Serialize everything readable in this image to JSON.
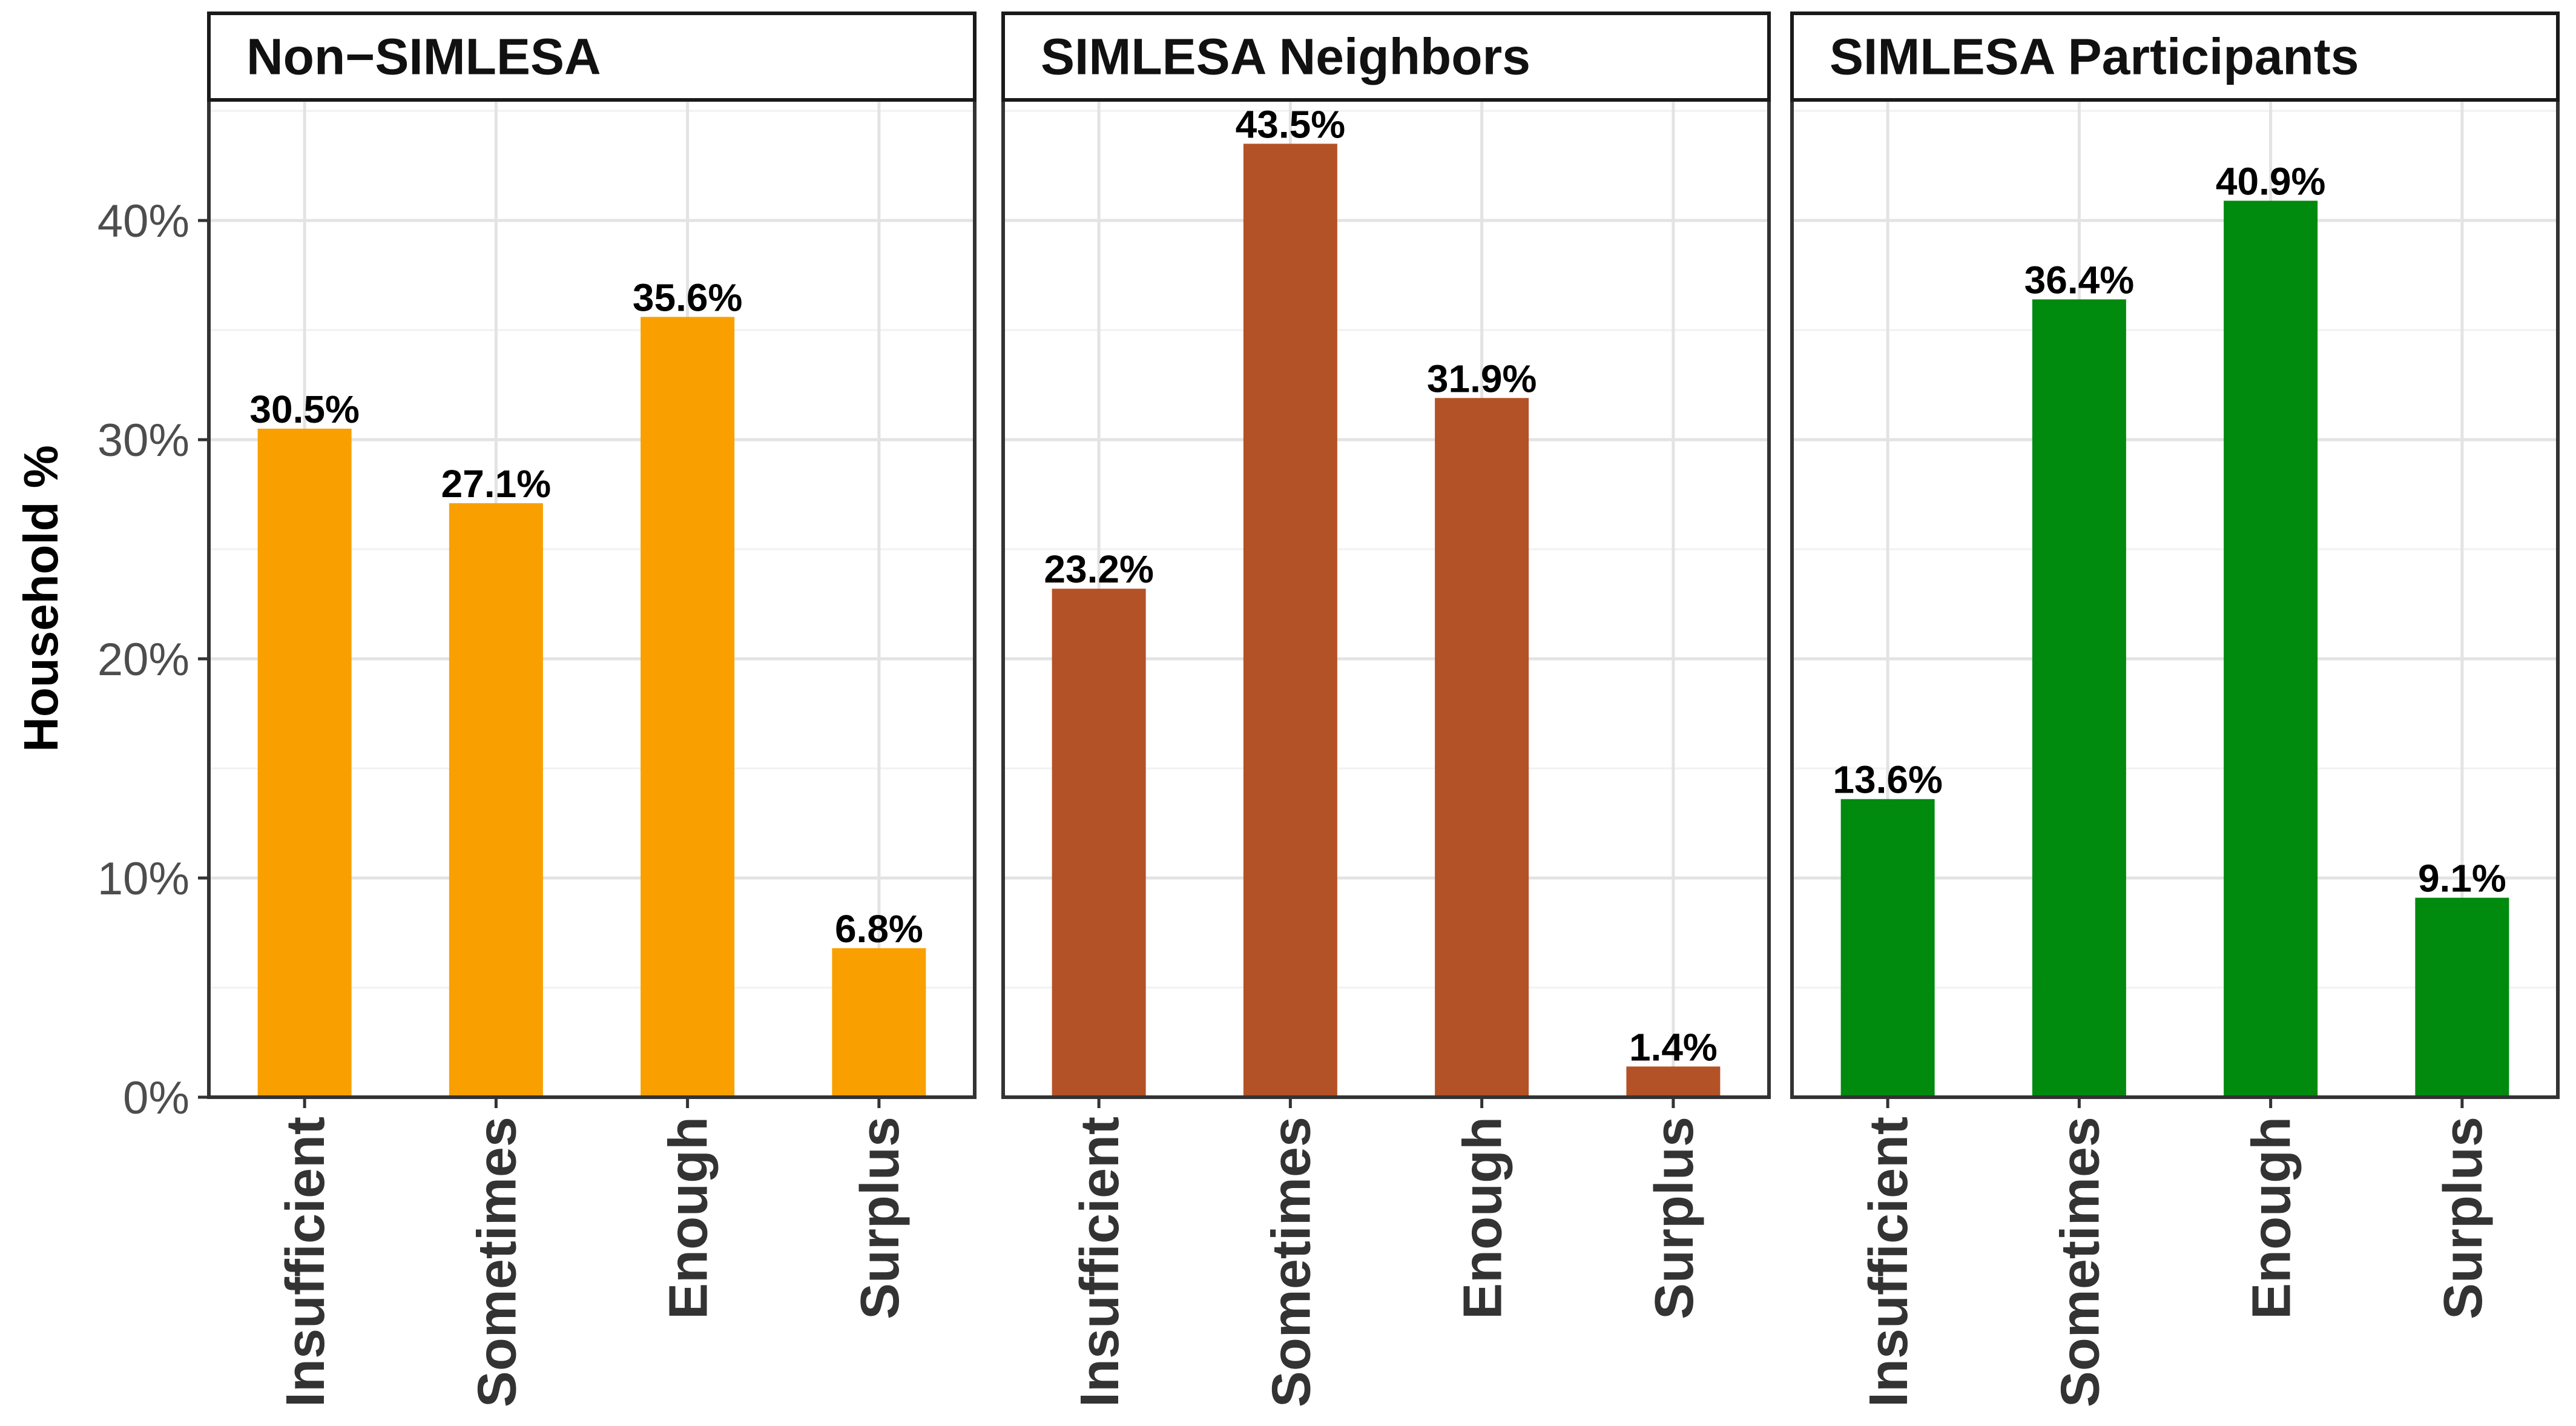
{
  "chart_data": {
    "type": "bar",
    "ylabel": "Household %",
    "xlabel": "",
    "ylim": [
      0,
      45.5
    ],
    "yticks": [
      0,
      10,
      20,
      30,
      40
    ],
    "ytick_labels": [
      "0%",
      "10%",
      "20%",
      "30%",
      "40%"
    ],
    "categories": [
      "Insufficient",
      "Sometimes",
      "Enough",
      "Surplus"
    ],
    "grid": true,
    "panels": [
      {
        "name": "Non−SIMLESA",
        "color": "#F9A000",
        "values": [
          30.5,
          27.1,
          35.6,
          6.8
        ],
        "labels": [
          "30.5%",
          "27.1%",
          "35.6%",
          "6.8%"
        ]
      },
      {
        "name": "SIMLESA Neighbors",
        "color": "#B35227",
        "values": [
          23.2,
          43.5,
          31.9,
          1.4
        ],
        "labels": [
          "23.2%",
          "43.5%",
          "31.9%",
          "1.4%"
        ]
      },
      {
        "name": "SIMLESA Participants",
        "color": "#008A0E",
        "values": [
          13.6,
          36.4,
          40.9,
          9.1
        ],
        "labels": [
          "13.6%",
          "36.4%",
          "40.9%",
          "9.1%"
        ]
      }
    ]
  }
}
